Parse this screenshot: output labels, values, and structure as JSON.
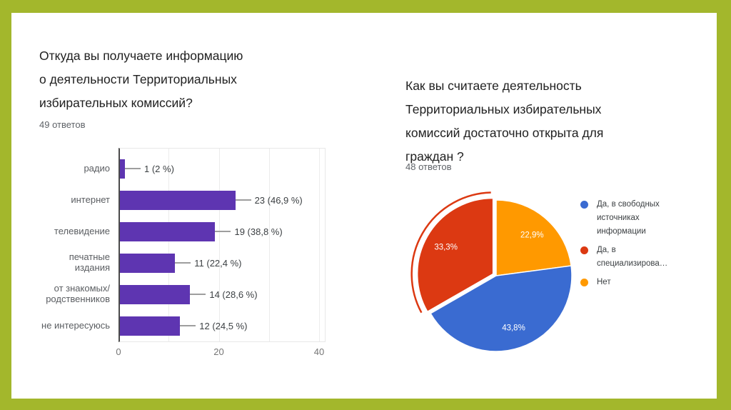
{
  "frame_color": "#a3b72c",
  "left": {
    "title_lines": [
      "Откуда вы получаете информацию",
      "о деятельности Территориальных",
      "избирательных комиссий?"
    ],
    "responses": "49 ответов"
  },
  "right": {
    "title_lines": [
      "Как вы считаете деятельность",
      "Территориальных избирательных",
      "комиссий достаточно открыта для",
      "граждан ?"
    ],
    "responses": "48 ответов"
  },
  "chart_data": [
    {
      "type": "bar",
      "orientation": "horizontal",
      "title": "Откуда вы получаете информацию о деятельности Территориальных избирательных комиссий?",
      "subtitle": "49 ответов",
      "categories": [
        "радио",
        "интернет",
        "телевидение",
        "печатные издания",
        "от знакомых/ родственников",
        "не интересуюсь"
      ],
      "values": [
        1,
        23,
        19,
        11,
        14,
        12
      ],
      "value_labels": [
        "1 (2 %)",
        "23 (46,9 %)",
        "19 (38,8 %)",
        "11 (22,4 %)",
        "14 (28,6 %)",
        "12 (24,5 %)"
      ],
      "xlim": [
        0,
        40
      ],
      "xticks": [
        0,
        20,
        40
      ],
      "gridlines": [
        10,
        20,
        30,
        40
      ],
      "grid_on": true,
      "bar_color": "#5e35b1"
    },
    {
      "type": "pie",
      "title": "Как вы считаете деятельность Территориальных избирательных комиссий достаточно открыта для граждан ?",
      "subtitle": "48 ответов",
      "slices": [
        {
          "label": "Да, в свободных источниках информации",
          "pct": 43.8,
          "pct_label": "43,8%",
          "color": "#3a6bd1",
          "exploded": false
        },
        {
          "label": "Да, в специализирова…",
          "pct": 33.3,
          "pct_label": "33,3%",
          "color": "#dc3912",
          "exploded": true
        },
        {
          "label": "Нет",
          "pct": 22.9,
          "pct_label": "22,9%",
          "color": "#ff9900",
          "exploded": false
        }
      ],
      "draw_order": [
        2,
        0,
        1
      ],
      "start_angle_deg": 0,
      "clockwise": true,
      "legend_position": "right",
      "label_color": "#ffffff"
    }
  ]
}
